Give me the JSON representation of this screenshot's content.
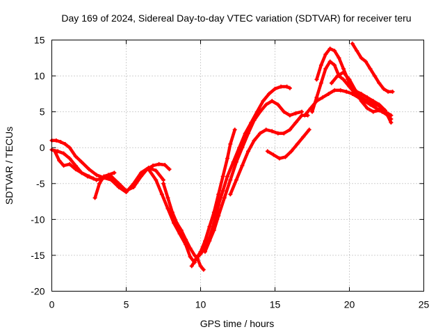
{
  "chart_data": {
    "type": "scatter",
    "title": "Day 169 of 2024, Sidereal Day-to-day VTEC variation (SDTVAR) for receiver teru",
    "xlabel": "GPS time / hours",
    "ylabel": "SDTVAR / TECUs",
    "xlim": [
      0,
      25
    ],
    "ylim": [
      -20,
      15
    ],
    "xticks": [
      "0",
      "5",
      "10",
      "15",
      "20",
      "25"
    ],
    "yticks": [
      "15",
      "10",
      "5",
      "0",
      "-5",
      "-10",
      "-15",
      "-20"
    ],
    "grid": true,
    "marker": "cross",
    "color": "#ff0000",
    "series": [
      {
        "x": [
          0.0,
          0.3,
          0.6,
          0.9,
          1.2,
          1.6,
          2.0,
          2.5,
          3.0,
          3.5,
          4.0,
          4.5,
          5.0,
          5.5,
          6.0,
          6.4,
          6.8,
          7.2,
          7.6,
          7.9
        ],
        "y": [
          1.0,
          1.0,
          0.8,
          0.5,
          0.0,
          -1.2,
          -2.0,
          -3.0,
          -3.8,
          -4.2,
          -4.0,
          -5.0,
          -6.0,
          -5.5,
          -4.0,
          -3.0,
          -2.5,
          -2.3,
          -2.4,
          -3.0
        ]
      },
      {
        "x": [
          0.0,
          0.4,
          0.8,
          1.2,
          1.6,
          2.0,
          2.5,
          3.0,
          3.5,
          4.0,
          4.5,
          5.0,
          5.5,
          6.0,
          6.5,
          7.0,
          7.5
        ],
        "y": [
          -0.3,
          -0.5,
          -0.8,
          -1.5,
          -2.5,
          -3.5,
          -4.0,
          -4.5,
          -4.2,
          -4.5,
          -5.5,
          -6.2,
          -5.0,
          -3.5,
          -2.8,
          -3.2,
          -4.5
        ]
      },
      {
        "x": [
          0.2,
          0.5,
          0.8,
          1.2,
          1.6,
          2.0,
          2.4,
          2.8
        ],
        "y": [
          -0.5,
          -1.8,
          -2.5,
          -2.3,
          -3.0,
          -3.5,
          -4.0,
          -4.3
        ]
      },
      {
        "x": [
          2.9,
          3.2,
          3.5,
          3.8,
          4.2
        ],
        "y": [
          -7.0,
          -5.0,
          -4.0,
          -3.8,
          -3.5
        ]
      },
      {
        "x": [
          7.5,
          7.8,
          8.1,
          8.4,
          8.7,
          9.0,
          9.3,
          9.6,
          9.8,
          10.0,
          10.2
        ],
        "y": [
          -5.0,
          -7.0,
          -9.0,
          -10.5,
          -11.5,
          -12.8,
          -14.0,
          -15.0,
          -15.5,
          -16.5,
          -17.0
        ]
      },
      {
        "x": [
          6.5,
          7.0,
          7.4,
          7.8,
          8.2,
          8.6,
          9.0,
          9.3,
          9.6
        ],
        "y": [
          -3.0,
          -4.5,
          -6.5,
          -8.5,
          -10.5,
          -12.0,
          -13.5,
          -15.2,
          -16.0
        ]
      },
      {
        "x": [
          9.4,
          9.7,
          10.0,
          10.3,
          10.6,
          10.9,
          11.2,
          11.5,
          11.8,
          12.0,
          12.3
        ],
        "y": [
          -16.5,
          -15.5,
          -14.5,
          -13.0,
          -11.0,
          -9.0,
          -6.5,
          -4.0,
          -1.5,
          0.5,
          2.5
        ]
      },
      {
        "x": [
          9.7,
          10.0,
          10.3,
          10.6,
          10.9,
          11.2,
          11.5,
          11.8,
          12.2,
          12.6,
          13.0,
          13.4,
          13.8,
          14.2,
          14.6,
          15.0,
          15.4,
          15.8,
          16.0
        ],
        "y": [
          -15.5,
          -14.8,
          -14.0,
          -12.5,
          -10.5,
          -8.0,
          -6.0,
          -4.0,
          -2.0,
          0.0,
          2.0,
          3.5,
          5.0,
          6.5,
          7.5,
          8.2,
          8.5,
          8.5,
          8.3
        ]
      },
      {
        "x": [
          10.3,
          10.6,
          10.9,
          11.2,
          11.6,
          12.0,
          12.4,
          12.8,
          13.2,
          13.6,
          14.0,
          14.4,
          14.8,
          15.2,
          15.6,
          16.0,
          16.4,
          16.8
        ],
        "y": [
          -14.5,
          -13.0,
          -11.5,
          -9.5,
          -7.0,
          -4.5,
          -2.0,
          0.0,
          2.0,
          3.8,
          5.0,
          6.0,
          6.5,
          6.0,
          5.0,
          4.5,
          4.8,
          5.0
        ]
      },
      {
        "x": [
          12.0,
          12.4,
          12.8,
          13.2,
          13.6,
          14.0,
          14.4,
          14.8,
          15.2,
          15.6,
          16.0,
          16.4,
          16.8,
          17.2
        ],
        "y": [
          -6.5,
          -4.5,
          -2.5,
          -0.5,
          1.0,
          2.0,
          2.5,
          2.3,
          2.0,
          2.0,
          2.5,
          3.5,
          4.5,
          4.5
        ]
      },
      {
        "x": [
          14.5,
          14.9,
          15.3,
          15.7,
          16.1,
          16.5,
          16.9,
          17.3
        ],
        "y": [
          -0.5,
          -1.0,
          -1.5,
          -1.3,
          -0.5,
          0.5,
          1.5,
          2.5
        ]
      },
      {
        "x": [
          17.5,
          17.8,
          18.1,
          18.4,
          18.7,
          19.0,
          19.3,
          19.6,
          20.0,
          20.4,
          20.8,
          21.2,
          21.6,
          22.0,
          22.4,
          22.8
        ],
        "y": [
          5.0,
          7.0,
          9.0,
          11.0,
          12.0,
          11.5,
          10.0,
          9.5,
          8.5,
          7.5,
          7.0,
          6.5,
          6.2,
          5.8,
          5.0,
          4.5
        ]
      },
      {
        "x": [
          17.8,
          18.1,
          18.4,
          18.7,
          19.0,
          19.3,
          19.6,
          19.9,
          20.2,
          20.5,
          20.8,
          21.2,
          21.6,
          22.0,
          22.4,
          22.8
        ],
        "y": [
          9.5,
          11.5,
          13.0,
          13.8,
          13.5,
          12.5,
          11.0,
          9.5,
          8.2,
          7.8,
          7.5,
          7.0,
          6.5,
          6.0,
          5.2,
          3.5
        ]
      },
      {
        "x": [
          17.0,
          17.4,
          17.8,
          18.2,
          18.6,
          19.0,
          19.4,
          19.8,
          20.2,
          20.6,
          21.0,
          21.4,
          21.8,
          22.2,
          22.6
        ],
        "y": [
          4.5,
          5.5,
          6.5,
          7.0,
          7.5,
          8.0,
          8.0,
          7.8,
          7.5,
          7.0,
          6.5,
          6.0,
          5.5,
          5.0,
          4.5
        ]
      },
      {
        "x": [
          20.2,
          20.5,
          20.8,
          21.1,
          21.4,
          21.7,
          22.0,
          22.3,
          22.6,
          22.9
        ],
        "y": [
          14.5,
          13.5,
          12.5,
          12.0,
          11.0,
          10.0,
          9.0,
          8.2,
          7.8,
          7.8
        ]
      },
      {
        "x": [
          18.8,
          19.2,
          19.6,
          20.0,
          20.4,
          20.8,
          21.2,
          21.6,
          22.0,
          22.4,
          22.8
        ],
        "y": [
          9.0,
          10.0,
          10.5,
          9.5,
          8.0,
          6.5,
          5.5,
          5.0,
          5.2,
          4.8,
          4.0
        ]
      }
    ]
  }
}
